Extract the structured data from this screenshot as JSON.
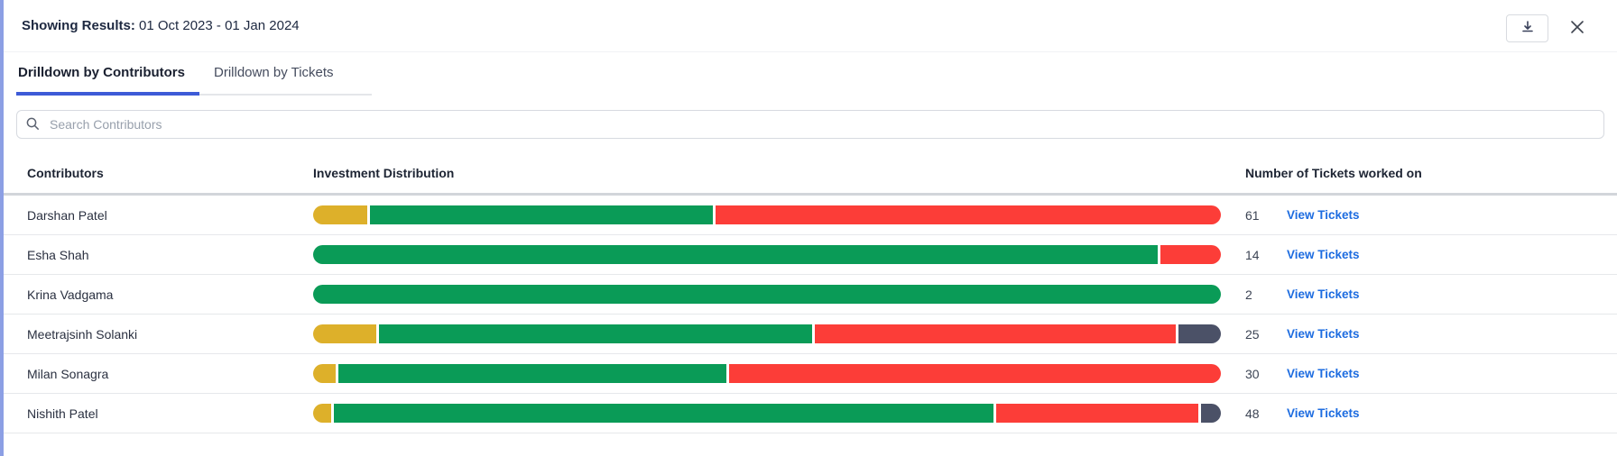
{
  "header": {
    "results_label": "Showing Results:",
    "results_value": "01 Oct 2023 - 01 Jan 2024"
  },
  "tabs": [
    {
      "label": "Drilldown by Contributors",
      "active": true
    },
    {
      "label": "Drilldown by Tickets",
      "active": false
    }
  ],
  "search": {
    "placeholder": "Search Contributors"
  },
  "table": {
    "columns": [
      "Contributors",
      "Investment Distribution",
      "Number of Tickets worked on"
    ],
    "link_label": "View Tickets",
    "rows": [
      {
        "name": "Darshan Patel",
        "tickets": "61",
        "segments": [
          {
            "color": "yellow",
            "pct": 6
          },
          {
            "color": "green",
            "pct": 38
          },
          {
            "color": "red",
            "pct": 56
          }
        ]
      },
      {
        "name": "Esha Shah",
        "tickets": "14",
        "segments": [
          {
            "color": "green",
            "pct": 93
          },
          {
            "color": "red",
            "pct": 7
          }
        ]
      },
      {
        "name": "Krina Vadgama",
        "tickets": "2",
        "segments": [
          {
            "color": "green",
            "pct": 100
          }
        ]
      },
      {
        "name": "Meetrajsinh Solanki",
        "tickets": "25",
        "segments": [
          {
            "color": "yellow",
            "pct": 7
          },
          {
            "color": "green",
            "pct": 48
          },
          {
            "color": "red",
            "pct": 40
          },
          {
            "color": "slate",
            "pct": 5
          }
        ]
      },
      {
        "name": "Milan Sonagra",
        "tickets": "30",
        "segments": [
          {
            "color": "yellow",
            "pct": 2.5
          },
          {
            "color": "green",
            "pct": 43
          },
          {
            "color": "red",
            "pct": 54.5
          }
        ]
      },
      {
        "name": "Nishith Patel",
        "tickets": "48",
        "segments": [
          {
            "color": "yellow",
            "pct": 2
          },
          {
            "color": "green",
            "pct": 73
          },
          {
            "color": "red",
            "pct": 22.5
          },
          {
            "color": "slate",
            "pct": 2.5
          }
        ]
      }
    ]
  },
  "colors": {
    "yellow": "#ddb02a",
    "green": "#0a9b57",
    "red": "#fc3d38",
    "slate": "#4b5167",
    "link_blue": "#1d6ce0",
    "tab_underline": "#3d5bd7",
    "left_stripe": "#8c9fe4"
  },
  "chart_data": {
    "type": "bar",
    "note": "stacked horizontal investment-distribution bars, one per contributor, segment values are percent of bar width",
    "categories": [
      "Darshan Patel",
      "Esha Shah",
      "Krina Vadgama",
      "Meetrajsinh Solanki",
      "Milan Sonagra",
      "Nishith Patel"
    ],
    "series": [
      {
        "name": "yellow",
        "values": [
          6,
          0,
          0,
          7,
          2.5,
          2
        ]
      },
      {
        "name": "green",
        "values": [
          38,
          93,
          100,
          48,
          43,
          73
        ]
      },
      {
        "name": "red",
        "values": [
          56,
          7,
          0,
          40,
          54.5,
          22.5
        ]
      },
      {
        "name": "slate",
        "values": [
          0,
          0,
          0,
          5,
          0,
          2.5
        ]
      }
    ],
    "tickets_worked_on": [
      61,
      14,
      2,
      25,
      30,
      48
    ]
  }
}
